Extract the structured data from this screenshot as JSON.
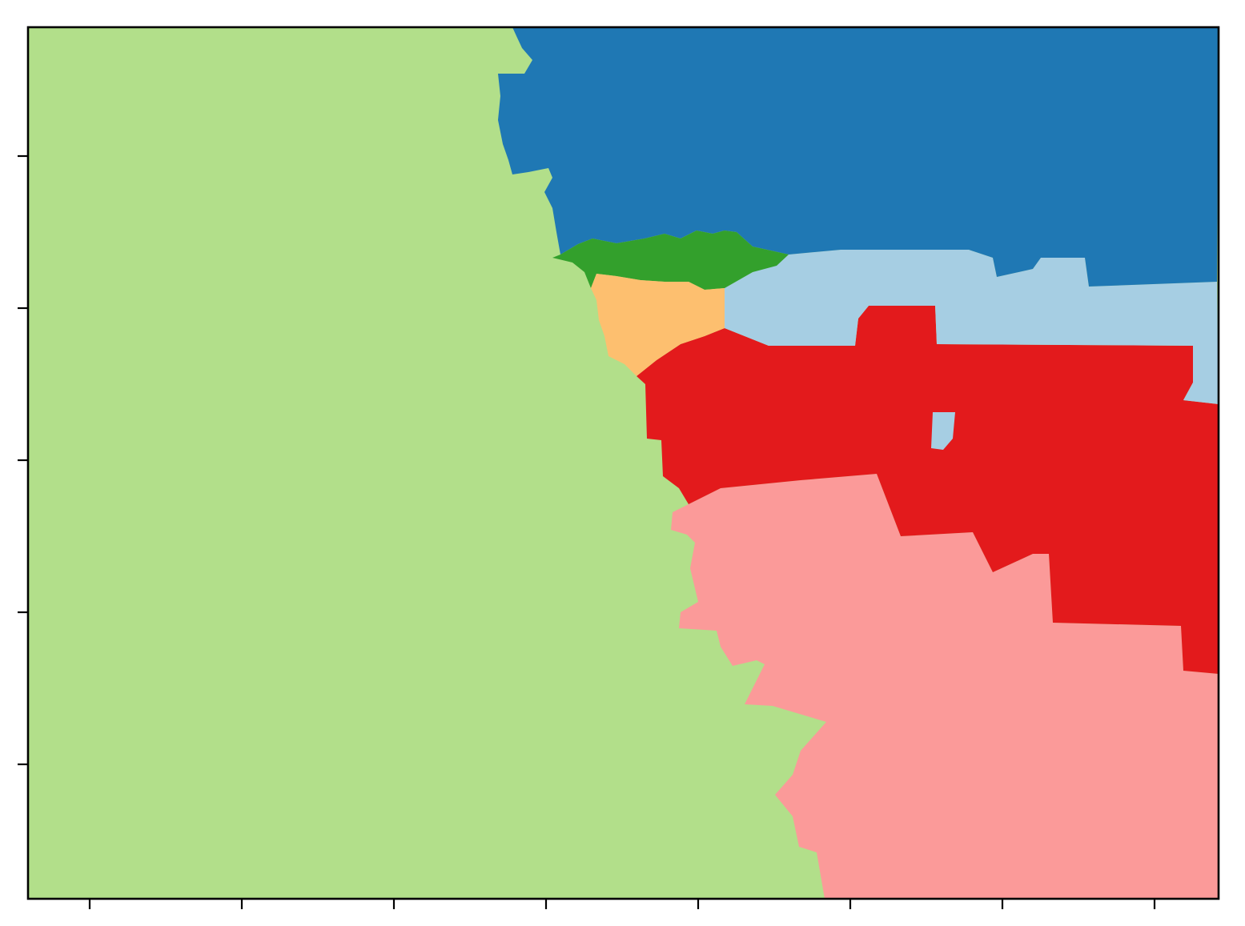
{
  "map": {
    "regions": [
      {
        "id": "region-west",
        "color": "#b2df8a"
      },
      {
        "id": "region-north",
        "color": "#1f78b4"
      },
      {
        "id": "region-north-center",
        "color": "#33a02c"
      },
      {
        "id": "region-center",
        "color": "#fdbf6f"
      },
      {
        "id": "region-east-central",
        "color": "#a6cee3"
      },
      {
        "id": "region-central",
        "color": "#e31a1c"
      },
      {
        "id": "region-south",
        "color": "#fb9a99"
      }
    ],
    "x_ticks": 8,
    "y_ticks": 5,
    "frame_color": "#000000"
  }
}
